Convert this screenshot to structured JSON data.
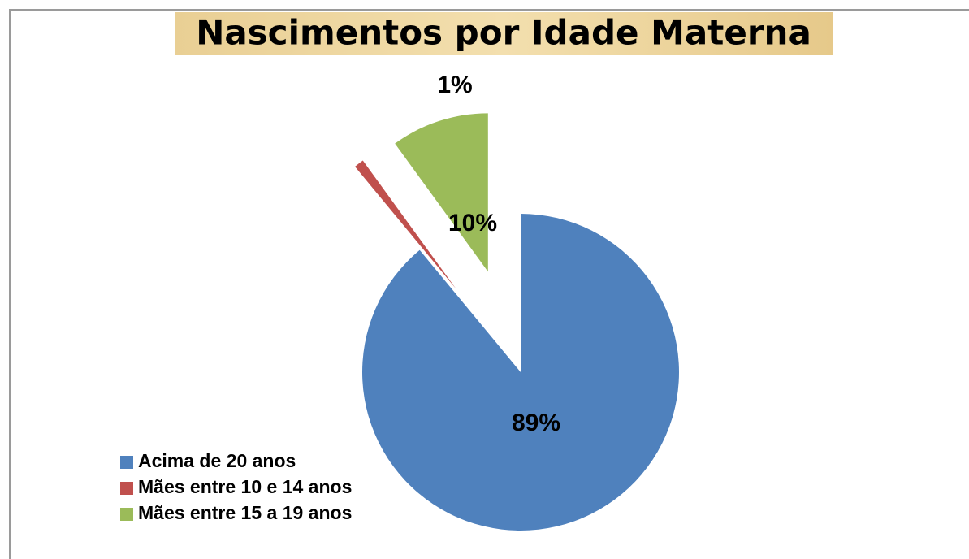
{
  "chart_data": {
    "type": "pie",
    "title": "Nascimentos por Idade Materna",
    "categories": [
      "Acima de 20 anos",
      "Mães entre 10 e 14 anos",
      "Mães entre 15 a 19 anos"
    ],
    "values": [
      89,
      1,
      10
    ],
    "value_labels": [
      "89%",
      "1%",
      "10%"
    ],
    "colors": [
      "#4f81bd",
      "#c0504d",
      "#9bbb59"
    ],
    "legend": "left"
  }
}
